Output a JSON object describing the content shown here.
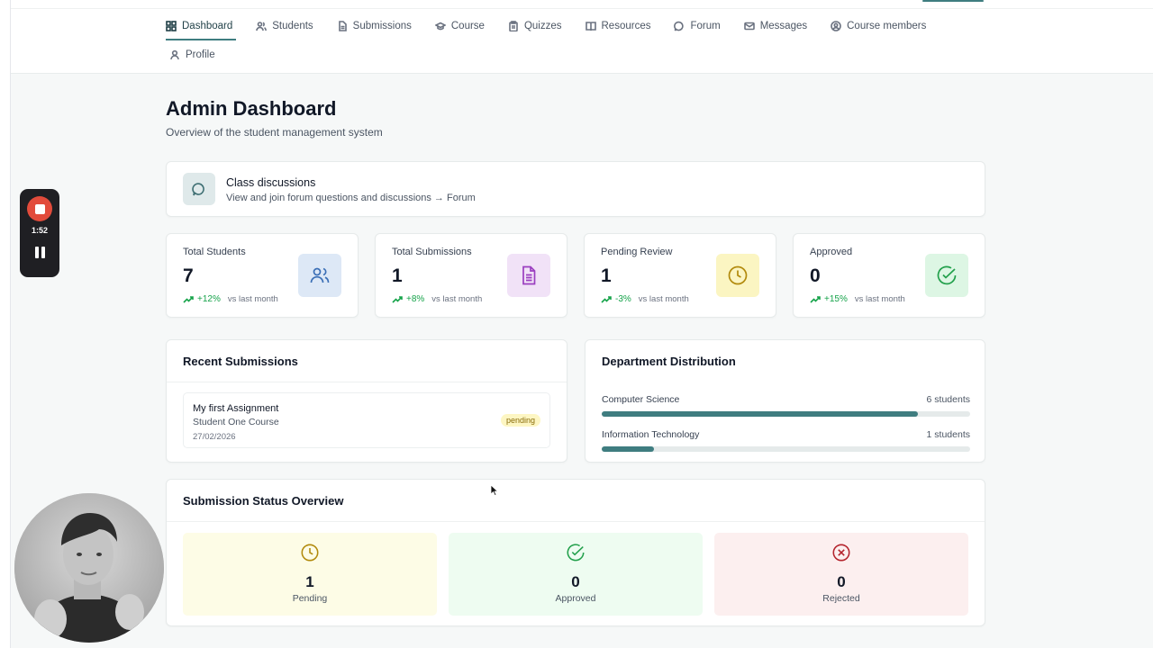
{
  "nav": {
    "items": [
      {
        "label": "Dashboard",
        "icon": "grid-icon",
        "active": true
      },
      {
        "label": "Students",
        "icon": "users-icon"
      },
      {
        "label": "Submissions",
        "icon": "file-icon"
      },
      {
        "label": "Course",
        "icon": "graduation-cap-icon"
      },
      {
        "label": "Quizzes",
        "icon": "clipboard-icon"
      },
      {
        "label": "Resources",
        "icon": "book-icon"
      },
      {
        "label": "Forum",
        "icon": "chat-bubble-icon"
      },
      {
        "label": "Messages",
        "icon": "mail-icon"
      },
      {
        "label": "Course members",
        "icon": "user-circle-icon"
      }
    ],
    "profile": {
      "label": "Profile",
      "icon": "user-icon"
    }
  },
  "page": {
    "title": "Admin Dashboard",
    "subtitle": "Overview of the student management system"
  },
  "discussions": {
    "title": "Class discussions",
    "subtitle": "View and join forum questions and discussions → Forum",
    "icon": "chat-bubble-icon"
  },
  "stats": [
    {
      "label": "Total Students",
      "value": "7",
      "trend": "+12%",
      "vs": "vs last month",
      "icon": "users-icon",
      "icon_bg": "#dde8f6",
      "icon_color": "#3b6fb6"
    },
    {
      "label": "Total Submissions",
      "value": "1",
      "trend": "+8%",
      "vs": "vs last month",
      "icon": "document-icon",
      "icon_bg": "#f1e2f7",
      "icon_color": "#9b3fc0"
    },
    {
      "label": "Pending Review",
      "value": "1",
      "trend": "-3%",
      "vs": "vs last month",
      "icon": "clock-icon",
      "icon_bg": "#fbf5c2",
      "icon_color": "#b28a0c"
    },
    {
      "label": "Approved",
      "value": "0",
      "trend": "+15%",
      "vs": "vs last month",
      "icon": "check-circle-icon",
      "icon_bg": "#ddf6e4",
      "icon_color": "#22a04b"
    }
  ],
  "recent": {
    "title": "Recent Submissions",
    "items": [
      {
        "name": "My first Assignment",
        "course": "Student One Course",
        "date": "27/02/2026",
        "status": "pending"
      }
    ]
  },
  "departments": {
    "title": "Department Distribution",
    "items": [
      {
        "name": "Computer Science",
        "count": "6 students",
        "fraction": 0.857
      },
      {
        "name": "Information Technology",
        "count": "1 students",
        "fraction": 0.143
      }
    ]
  },
  "status": {
    "title": "Submission Status Overview",
    "items": [
      {
        "value": "1",
        "label": "Pending",
        "icon": "clock-icon",
        "bg": "#fdfce6",
        "color": "#b28a0c"
      },
      {
        "value": "0",
        "label": "Approved",
        "icon": "check-circle-icon",
        "bg": "#eefcf1",
        "color": "#22a04b"
      },
      {
        "value": "0",
        "label": "Rejected",
        "icon": "x-circle-icon",
        "bg": "#fcefef",
        "color": "#b4232c"
      }
    ]
  },
  "recorder": {
    "time": "1:52"
  },
  "colors": {
    "accent": "#3f7d80",
    "trend_up": "#16a34a"
  }
}
